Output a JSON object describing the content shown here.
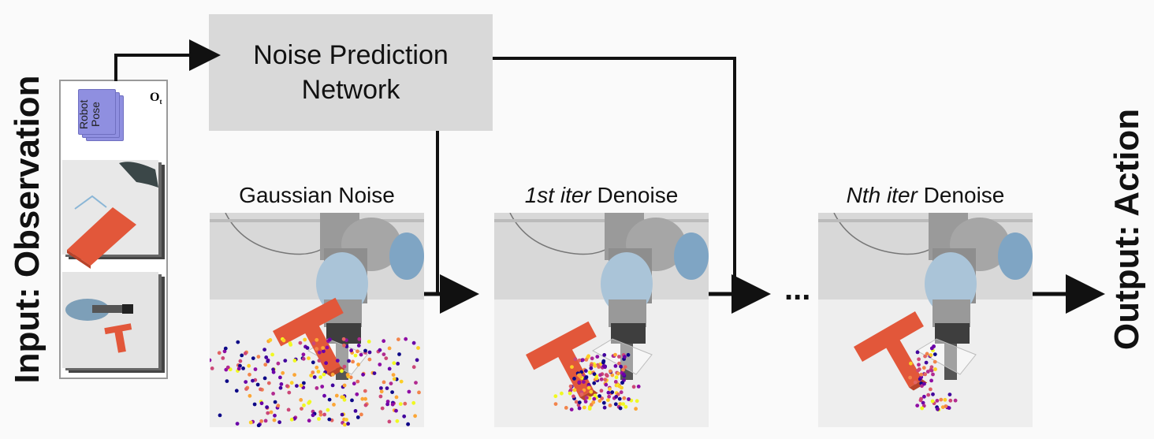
{
  "input_label": "Input: Observation",
  "output_label": "Output: Action",
  "observation": {
    "robot_pose_line1": "Robot",
    "robot_pose_line2": "Pose",
    "obs_symbol": "O",
    "obs_subscript": "t"
  },
  "network": {
    "line1": "Noise Prediction",
    "line2": "Network"
  },
  "stages": [
    {
      "caption": "Gaussian Noise",
      "italic": "",
      "rest": "Gaussian Noise"
    },
    {
      "caption": "1st iter Denoise",
      "italic": "1st iter",
      "rest": " Denoise"
    },
    {
      "caption": "Nth iter Denoise",
      "italic": "Nth iter",
      "rest": " Denoise"
    }
  ],
  "ellipsis": "...",
  "colors": {
    "network_box": "#d9d9d9",
    "pose_card": "#8f8fe0",
    "t_block": "#e2573a",
    "arrow": "#111111"
  }
}
